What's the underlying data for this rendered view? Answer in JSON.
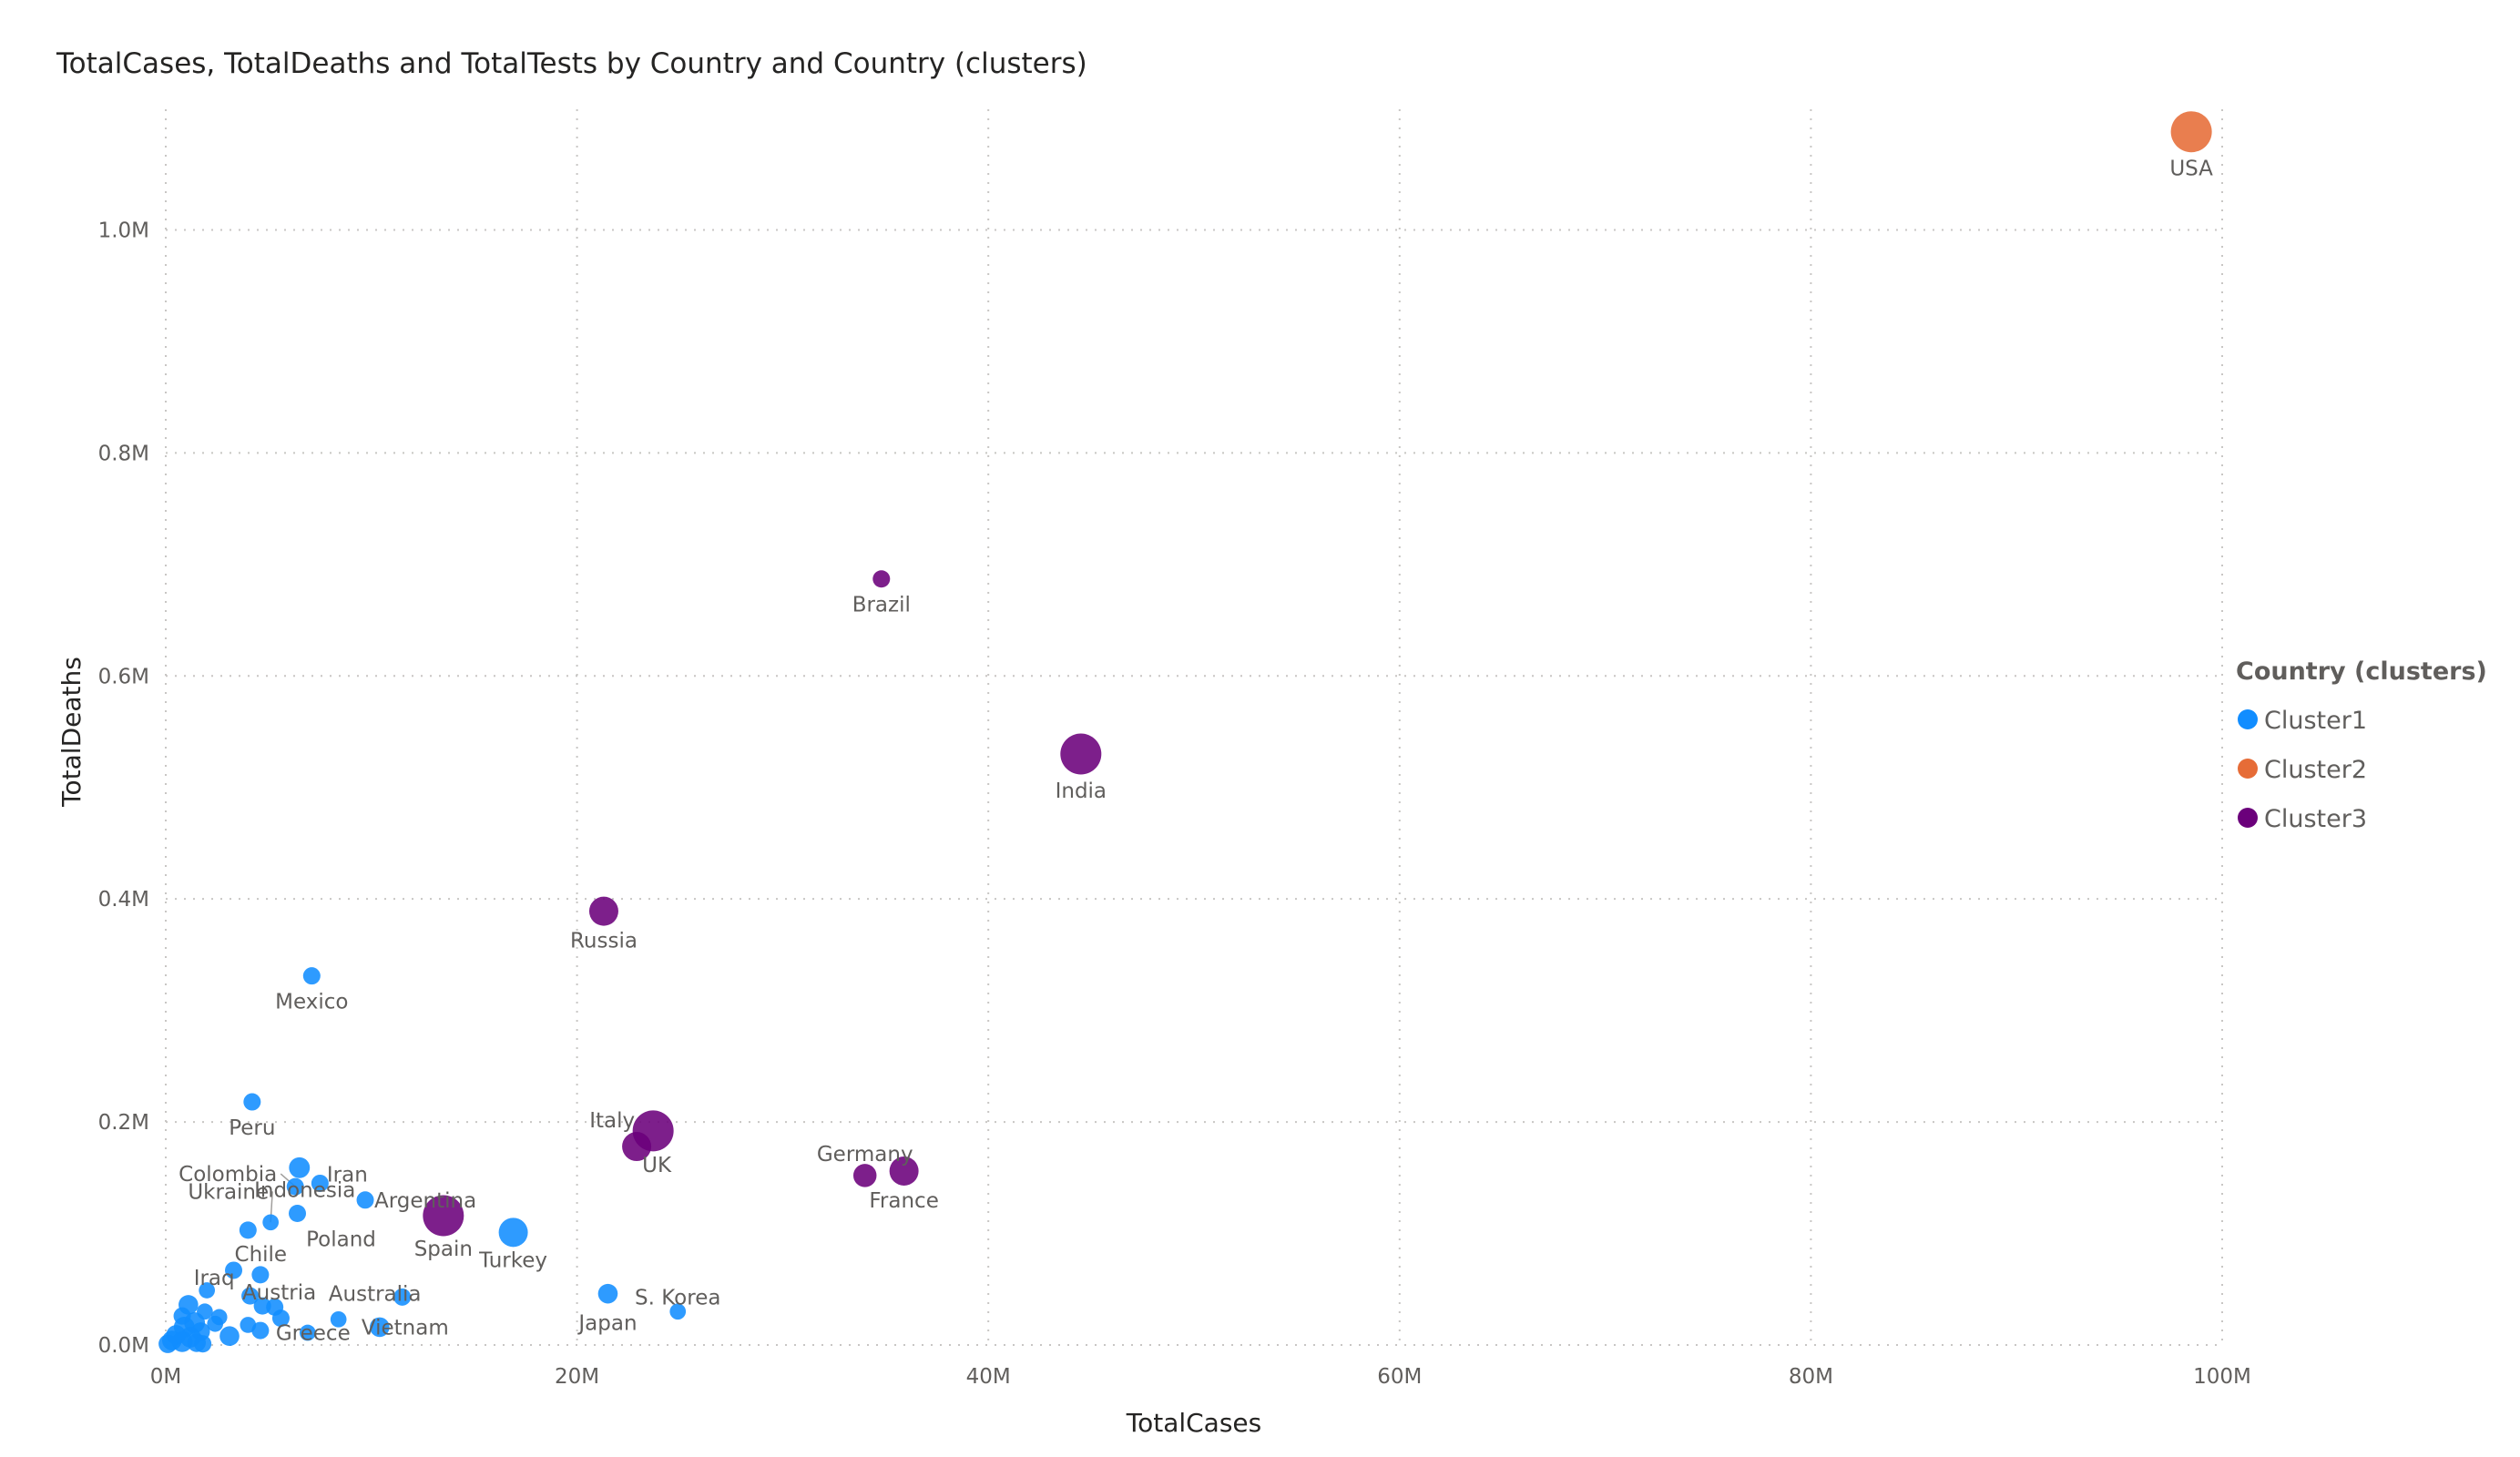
{
  "chart_data": {
    "type": "scatter",
    "title": "TotalCases, TotalDeaths and TotalTests by Country and Country (clusters)",
    "xlabel": "TotalCases",
    "ylabel": "TotalDeaths",
    "xlim": [
      0,
      100000000
    ],
    "ylim": [
      0,
      1100000
    ],
    "x_ticks": [
      "0M",
      "20M",
      "40M",
      "60M",
      "80M",
      "100M"
    ],
    "y_ticks": [
      "0.0M",
      "0.2M",
      "0.4M",
      "0.6M",
      "0.8M",
      "1.0M"
    ],
    "grid": true,
    "legend": {
      "title": "Country (clusters)",
      "placement": "right",
      "items": [
        {
          "name": "Cluster1",
          "color": "#118dff"
        },
        {
          "name": "Cluster2",
          "color": "#e66c37"
        },
        {
          "name": "Cluster3",
          "color": "#6b007b"
        }
      ]
    },
    "points": [
      {
        "label": "USA",
        "x": 98500000,
        "y": 1088000,
        "cluster": "Cluster2",
        "size": 3
      },
      {
        "label": "Brazil",
        "x": 34800000,
        "y": 687000,
        "cluster": "Cluster3",
        "size": 1
      },
      {
        "label": "India",
        "x": 44500000,
        "y": 530000,
        "cluster": "Cluster3",
        "size": 3
      },
      {
        "label": "Russia",
        "x": 21300000,
        "y": 389000,
        "cluster": "Cluster3",
        "size": 2
      },
      {
        "label": "Mexico",
        "x": 7100000,
        "y": 331000,
        "cluster": "Cluster1",
        "size": 1
      },
      {
        "label": "Peru",
        "x": 4200000,
        "y": 218000,
        "cluster": "Cluster1",
        "size": 1
      },
      {
        "label": "Italy",
        "x": 23700000,
        "y": 192000,
        "cluster": "Cluster3",
        "size": 3
      },
      {
        "label": "UK",
        "x": 22900000,
        "y": 178000,
        "cluster": "Cluster3",
        "size": 2
      },
      {
        "label": "Germany",
        "x": 34000000,
        "y": 152000,
        "cluster": "Cluster3",
        "size": 1.5
      },
      {
        "label": "France",
        "x": 35900000,
        "y": 156000,
        "cluster": "Cluster3",
        "size": 2
      },
      {
        "label": "Iran",
        "x": 7500000,
        "y": 145000,
        "cluster": "Cluster1",
        "size": 1
      },
      {
        "label": "Colombia",
        "x": 6300000,
        "y": 142000,
        "cluster": "Cluster1",
        "size": 1
      },
      {
        "label": "Indonesia",
        "x": 6500000,
        "y": 159000,
        "cluster": "Cluster1",
        "size": 1.3
      },
      {
        "label": "Argentina",
        "x": 9700000,
        "y": 130000,
        "cluster": "Cluster1",
        "size": 1
      },
      {
        "label": "Ukraine",
        "x": 5100000,
        "y": 110000,
        "cluster": "Cluster1",
        "size": 0.9
      },
      {
        "label": "Poland",
        "x": 6400000,
        "y": 118000,
        "cluster": "Cluster1",
        "size": 1
      },
      {
        "label": "Spain",
        "x": 13500000,
        "y": 116000,
        "cluster": "Cluster3",
        "size": 3
      },
      {
        "label": "Turkey",
        "x": 16900000,
        "y": 101000,
        "cluster": "Cluster1",
        "size": 2
      },
      {
        "label": "Chile",
        "x": 4000000,
        "y": 103000,
        "cluster": "Cluster1",
        "size": 1
      },
      {
        "label": "Iraq",
        "x": 2000000,
        "y": 49000,
        "cluster": "Cluster1",
        "size": 0.9
      },
      {
        "label": "Austria",
        "x": 4100000,
        "y": 44000,
        "cluster": "Cluster1",
        "size": 1
      },
      {
        "label": "Australia",
        "x": 11500000,
        "y": 43000,
        "cluster": "Cluster1",
        "size": 1
      },
      {
        "label": "Greece",
        "x": 6900000,
        "y": 11000,
        "cluster": "Cluster1",
        "size": 0.9
      },
      {
        "label": "Vietnam",
        "x": 10400000,
        "y": 16000,
        "cluster": "Cluster1",
        "size": 1.2
      },
      {
        "label": "S. Korea",
        "x": 24900000,
        "y": 30000,
        "cluster": "Cluster1",
        "size": 0.9
      },
      {
        "label": "Japan",
        "x": 21500000,
        "y": 46000,
        "cluster": "Cluster1",
        "size": 1.2
      },
      {
        "label": "",
        "x": 3300000,
        "y": 67000,
        "cluster": "Cluster1",
        "size": 1
      },
      {
        "label": "",
        "x": 4600000,
        "y": 63000,
        "cluster": "Cluster1",
        "size": 1
      },
      {
        "label": "",
        "x": 4700000,
        "y": 35000,
        "cluster": "Cluster1",
        "size": 1
      },
      {
        "label": "",
        "x": 5300000,
        "y": 34000,
        "cluster": "Cluster1",
        "size": 1
      },
      {
        "label": "",
        "x": 5600000,
        "y": 24000,
        "cluster": "Cluster1",
        "size": 1
      },
      {
        "label": "",
        "x": 4600000,
        "y": 13000,
        "cluster": "Cluster1",
        "size": 1
      },
      {
        "label": "",
        "x": 3100000,
        "y": 8000,
        "cluster": "Cluster1",
        "size": 1.2
      },
      {
        "label": "",
        "x": 8400000,
        "y": 23000,
        "cluster": "Cluster1",
        "size": 0.9
      },
      {
        "label": "",
        "x": 4000000,
        "y": 18000,
        "cluster": "Cluster1",
        "size": 0.9
      },
      {
        "label": "",
        "x": 2600000,
        "y": 25000,
        "cluster": "Cluster1",
        "size": 0.9
      },
      {
        "label": "",
        "x": 2400000,
        "y": 19000,
        "cluster": "Cluster1",
        "size": 0.9
      },
      {
        "label": "",
        "x": 1900000,
        "y": 30000,
        "cluster": "Cluster1",
        "size": 0.9
      },
      {
        "label": "",
        "x": 1100000,
        "y": 36000,
        "cluster": "Cluster1",
        "size": 1.2
      },
      {
        "label": "",
        "x": 800000,
        "y": 26000,
        "cluster": "Cluster1",
        "size": 1
      },
      {
        "label": "",
        "x": 1400000,
        "y": 20000,
        "cluster": "Cluster1",
        "size": 1.3
      },
      {
        "label": "",
        "x": 900000,
        "y": 16000,
        "cluster": "Cluster1",
        "size": 1.3
      },
      {
        "label": "",
        "x": 1700000,
        "y": 12000,
        "cluster": "Cluster1",
        "size": 1.1
      },
      {
        "label": "",
        "x": 500000,
        "y": 9000,
        "cluster": "Cluster1",
        "size": 1.2
      },
      {
        "label": "",
        "x": 1200000,
        "y": 7000,
        "cluster": "Cluster1",
        "size": 1.3
      },
      {
        "label": "",
        "x": 300000,
        "y": 4000,
        "cluster": "Cluster1",
        "size": 1.2
      },
      {
        "label": "",
        "x": 800000,
        "y": 3000,
        "cluster": "Cluster1",
        "size": 1.3
      },
      {
        "label": "",
        "x": 1500000,
        "y": 2000,
        "cluster": "Cluster1",
        "size": 1.1
      },
      {
        "label": "",
        "x": 1800000,
        "y": 1000,
        "cluster": "Cluster1",
        "size": 1
      },
      {
        "label": "",
        "x": 100000,
        "y": 1000,
        "cluster": "Cluster1",
        "size": 1.1
      }
    ]
  }
}
